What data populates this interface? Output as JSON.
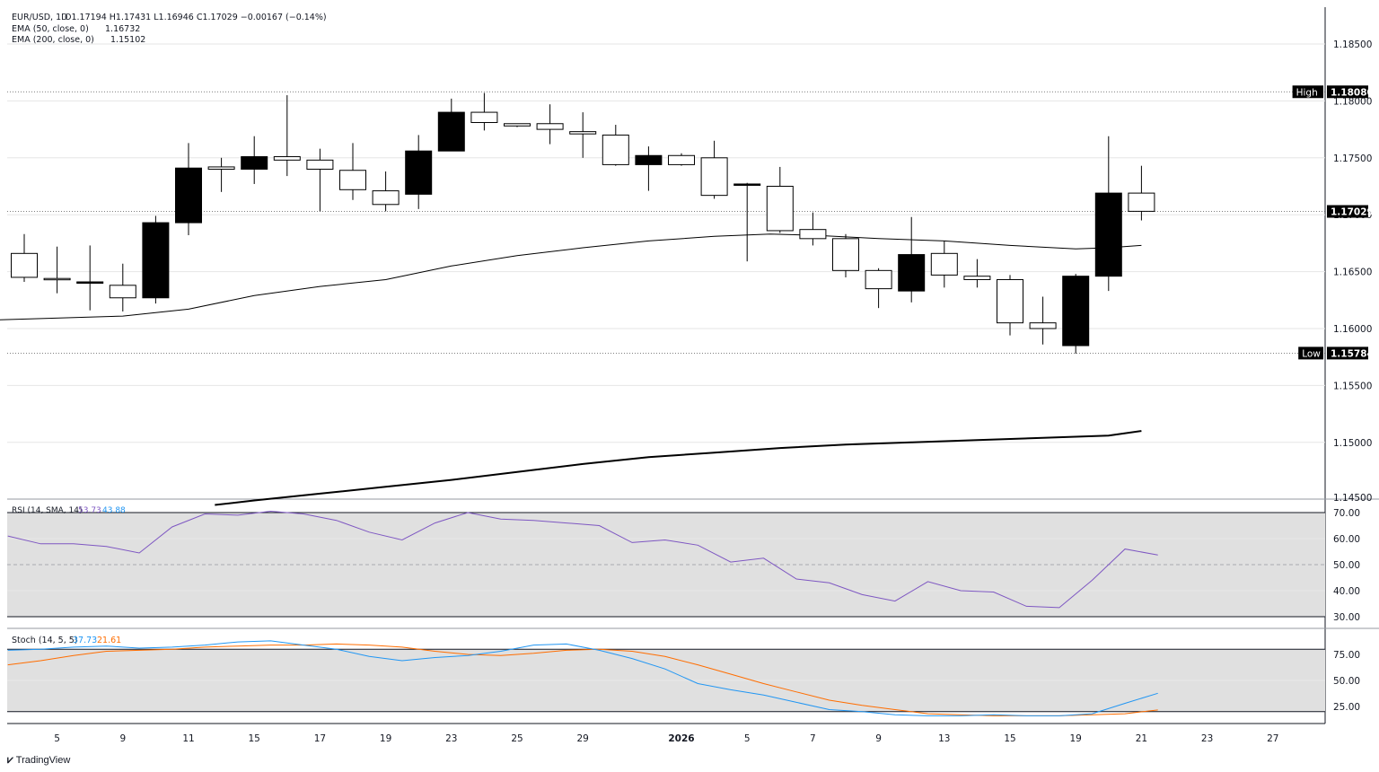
{
  "header": {
    "symbol": "EUR/USD, 1D",
    "ohlc": "O1.17194  H1.17431  L1.16946  C1.17029  −0.00167 (−0.14%)",
    "ema50_label": "EMA (50, close, 0)",
    "ema50_value": "1.16732",
    "ema200_label": "EMA (200, close, 0)",
    "ema200_value": "1.15102"
  },
  "footer": {
    "brand": "TradingView",
    "logo_icon": "tradingview-logo-icon"
  },
  "colors": {
    "up": "#ffffff",
    "down": "#000000",
    "rsi": "#7e57c2",
    "stoch_k": "#2196f3",
    "stoch_d": "#ff6d00",
    "band": "#e0e0e0"
  },
  "chart_data": [
    {
      "type": "candlestick",
      "title": "EUR/USD, 1D",
      "ylim": [
        1.1445,
        1.188
      ],
      "yticks": [
        "1.18500",
        "1.18000",
        "1.17500",
        "1.17000",
        "1.16500",
        "1.16000",
        "1.15500",
        "1.15000",
        "1.14500"
      ],
      "xticks": [
        {
          "i": 1,
          "label": "5"
        },
        {
          "i": 3,
          "label": "9"
        },
        {
          "i": 5,
          "label": "11"
        },
        {
          "i": 7,
          "label": "15"
        },
        {
          "i": 9,
          "label": "17"
        },
        {
          "i": 11,
          "label": "19"
        },
        {
          "i": 13,
          "label": "23"
        },
        {
          "i": 15,
          "label": "25"
        },
        {
          "i": 17,
          "label": "29"
        },
        {
          "i": 20,
          "label": "2026"
        },
        {
          "i": 22,
          "label": "5"
        },
        {
          "i": 24,
          "label": "7"
        },
        {
          "i": 26,
          "label": "9"
        },
        {
          "i": 28,
          "label": "13"
        },
        {
          "i": 30,
          "label": "15"
        },
        {
          "i": 32,
          "label": "19"
        },
        {
          "i": 34,
          "label": "21"
        },
        {
          "i": 36,
          "label": "23"
        },
        {
          "i": 38,
          "label": "27"
        }
      ],
      "candles": [
        {
          "o": 1.1645,
          "h": 1.1683,
          "l": 1.1641,
          "c": 1.1666
        },
        {
          "o": 1.1644,
          "h": 1.1672,
          "l": 1.1631,
          "c": 1.1644
        },
        {
          "o": 1.1641,
          "h": 1.1673,
          "l": 1.1616,
          "c": 1.164
        },
        {
          "o": 1.1627,
          "h": 1.1657,
          "l": 1.1615,
          "c": 1.1638
        },
        {
          "o": 1.1693,
          "h": 1.1699,
          "l": 1.1622,
          "c": 1.1627
        },
        {
          "o": 1.1741,
          "h": 1.1763,
          "l": 1.1682,
          "c": 1.1693
        },
        {
          "o": 1.174,
          "h": 1.175,
          "l": 1.172,
          "c": 1.1742
        },
        {
          "o": 1.1751,
          "h": 1.1769,
          "l": 1.1727,
          "c": 1.174
        },
        {
          "o": 1.1748,
          "h": 1.1805,
          "l": 1.1734,
          "c": 1.1751
        },
        {
          "o": 1.174,
          "h": 1.1758,
          "l": 1.1703,
          "c": 1.1748
        },
        {
          "o": 1.1722,
          "h": 1.1763,
          "l": 1.1713,
          "c": 1.1739
        },
        {
          "o": 1.1709,
          "h": 1.1738,
          "l": 1.1703,
          "c": 1.1721
        },
        {
          "o": 1.1756,
          "h": 1.177,
          "l": 1.1705,
          "c": 1.1718
        },
        {
          "o": 1.179,
          "h": 1.1802,
          "l": 1.1756,
          "c": 1.1756
        },
        {
          "o": 1.1781,
          "h": 1.1807,
          "l": 1.1774,
          "c": 1.179
        },
        {
          "o": 1.1778,
          "h": 1.178,
          "l": 1.1777,
          "c": 1.178
        },
        {
          "o": 1.1775,
          "h": 1.1797,
          "l": 1.1762,
          "c": 1.178
        },
        {
          "o": 1.1771,
          "h": 1.179,
          "l": 1.175,
          "c": 1.1773
        },
        {
          "o": 1.1744,
          "h": 1.1779,
          "l": 1.1743,
          "c": 1.177
        },
        {
          "o": 1.1752,
          "h": 1.176,
          "l": 1.1721,
          "c": 1.1744
        },
        {
          "o": 1.1744,
          "h": 1.1754,
          "l": 1.1743,
          "c": 1.1752
        },
        {
          "o": 1.1717,
          "h": 1.1765,
          "l": 1.1714,
          "c": 1.175
        },
        {
          "o": 1.1727,
          "h": 1.1728,
          "l": 1.1659,
          "c": 1.1726
        },
        {
          "o": 1.1686,
          "h": 1.1742,
          "l": 1.1684,
          "c": 1.1725
        },
        {
          "o": 1.1679,
          "h": 1.1702,
          "l": 1.1673,
          "c": 1.1687
        },
        {
          "o": 1.1651,
          "h": 1.1683,
          "l": 1.1645,
          "c": 1.1679
        },
        {
          "o": 1.1635,
          "h": 1.1653,
          "l": 1.1618,
          "c": 1.1651
        },
        {
          "o": 1.1665,
          "h": 1.1698,
          "l": 1.1623,
          "c": 1.1633
        },
        {
          "o": 1.1647,
          "h": 1.1677,
          "l": 1.1636,
          "c": 1.1666
        },
        {
          "o": 1.1643,
          "h": 1.1661,
          "l": 1.1636,
          "c": 1.1646
        },
        {
          "o": 1.1605,
          "h": 1.1647,
          "l": 1.1594,
          "c": 1.1643
        },
        {
          "o": 1.16,
          "h": 1.1628,
          "l": 1.1586,
          "c": 1.1605
        },
        {
          "o": 1.1646,
          "h": 1.1648,
          "l": 1.1578,
          "c": 1.1585
        },
        {
          "o": 1.1719,
          "h": 1.1769,
          "l": 1.1633,
          "c": 1.1646
        },
        {
          "o": 1.1703,
          "h": 1.1743,
          "l": 1.1695,
          "c": 1.1719
        }
      ],
      "ema50": [
        [
          -1.5,
          1.1607
        ],
        [
          3,
          1.1611
        ],
        [
          5,
          1.1617
        ],
        [
          7,
          1.1629
        ],
        [
          9,
          1.1637
        ],
        [
          11,
          1.1643
        ],
        [
          13,
          1.1655
        ],
        [
          15,
          1.1664
        ],
        [
          17,
          1.1671
        ],
        [
          19,
          1.1677
        ],
        [
          21,
          1.1681
        ],
        [
          22.7,
          1.1683
        ],
        [
          24,
          1.1682
        ],
        [
          26,
          1.1679
        ],
        [
          28,
          1.1677
        ],
        [
          30,
          1.1673
        ],
        [
          32,
          1.167
        ],
        [
          33,
          1.1671
        ],
        [
          34,
          1.1673
        ]
      ],
      "ema200": [
        [
          5.8,
          1.1445
        ],
        [
          7,
          1.1449
        ],
        [
          9,
          1.1455
        ],
        [
          11,
          1.1461
        ],
        [
          13,
          1.1467
        ],
        [
          15,
          1.1474
        ],
        [
          17,
          1.1481
        ],
        [
          19,
          1.1487
        ],
        [
          21,
          1.1491
        ],
        [
          23,
          1.1495
        ],
        [
          25,
          1.1498
        ],
        [
          27,
          1.15
        ],
        [
          29,
          1.1502
        ],
        [
          31,
          1.1504
        ],
        [
          33,
          1.1506
        ],
        [
          34,
          1.151
        ]
      ],
      "high": {
        "label": "High",
        "value": "1.18080"
      },
      "low": {
        "label": "Low",
        "value": "1.15784"
      },
      "last": {
        "value": "1.17029"
      }
    },
    {
      "type": "line",
      "title": "RSI (14, SMA, 14)",
      "values_label_1": "53.73",
      "values_label_2": "43.88",
      "ylim": [
        29,
        72
      ],
      "yticks": [
        "70.00",
        "60.00",
        "50.00",
        "40.00",
        "30.00"
      ],
      "band": [
        30,
        70
      ],
      "rsi": [
        61.0,
        58.0,
        58.0,
        57.0,
        54.5,
        64.5,
        69.5,
        69.0,
        70.5,
        69.5,
        67.0,
        62.5,
        59.5,
        66.0,
        70.0,
        67.5,
        67.0,
        66.0,
        65.0,
        58.5,
        59.5,
        57.5,
        51.0,
        52.5,
        44.5,
        43.0,
        38.5,
        36.0,
        43.5,
        40.0,
        39.5,
        34.0,
        33.5,
        44.0,
        56.0,
        53.7
      ]
    },
    {
      "type": "line",
      "title": "Stoch (14, 5, 5)",
      "values_label_1": "37.73",
      "values_label_2": "21.61",
      "ylim": [
        15,
        96
      ],
      "yticks": [
        "75.00",
        "50.00",
        "25.00"
      ],
      "band": [
        20,
        80
      ],
      "k": [
        79,
        80,
        82,
        83,
        81,
        82,
        84,
        87,
        88,
        84,
        80,
        73,
        69,
        72,
        74,
        78,
        84,
        85,
        79,
        71,
        61,
        47,
        41,
        36,
        29,
        22,
        20,
        17,
        16,
        16,
        17,
        16,
        16,
        18,
        28,
        37.7
      ],
      "d": [
        65,
        69,
        74,
        78,
        79,
        80,
        82,
        83,
        84,
        84,
        85,
        84,
        82,
        78,
        75,
        74,
        76,
        79,
        80,
        78,
        73,
        65,
        56,
        47,
        39,
        31,
        26,
        22,
        18,
        17,
        16,
        16,
        16,
        17,
        18,
        21.6
      ]
    }
  ]
}
